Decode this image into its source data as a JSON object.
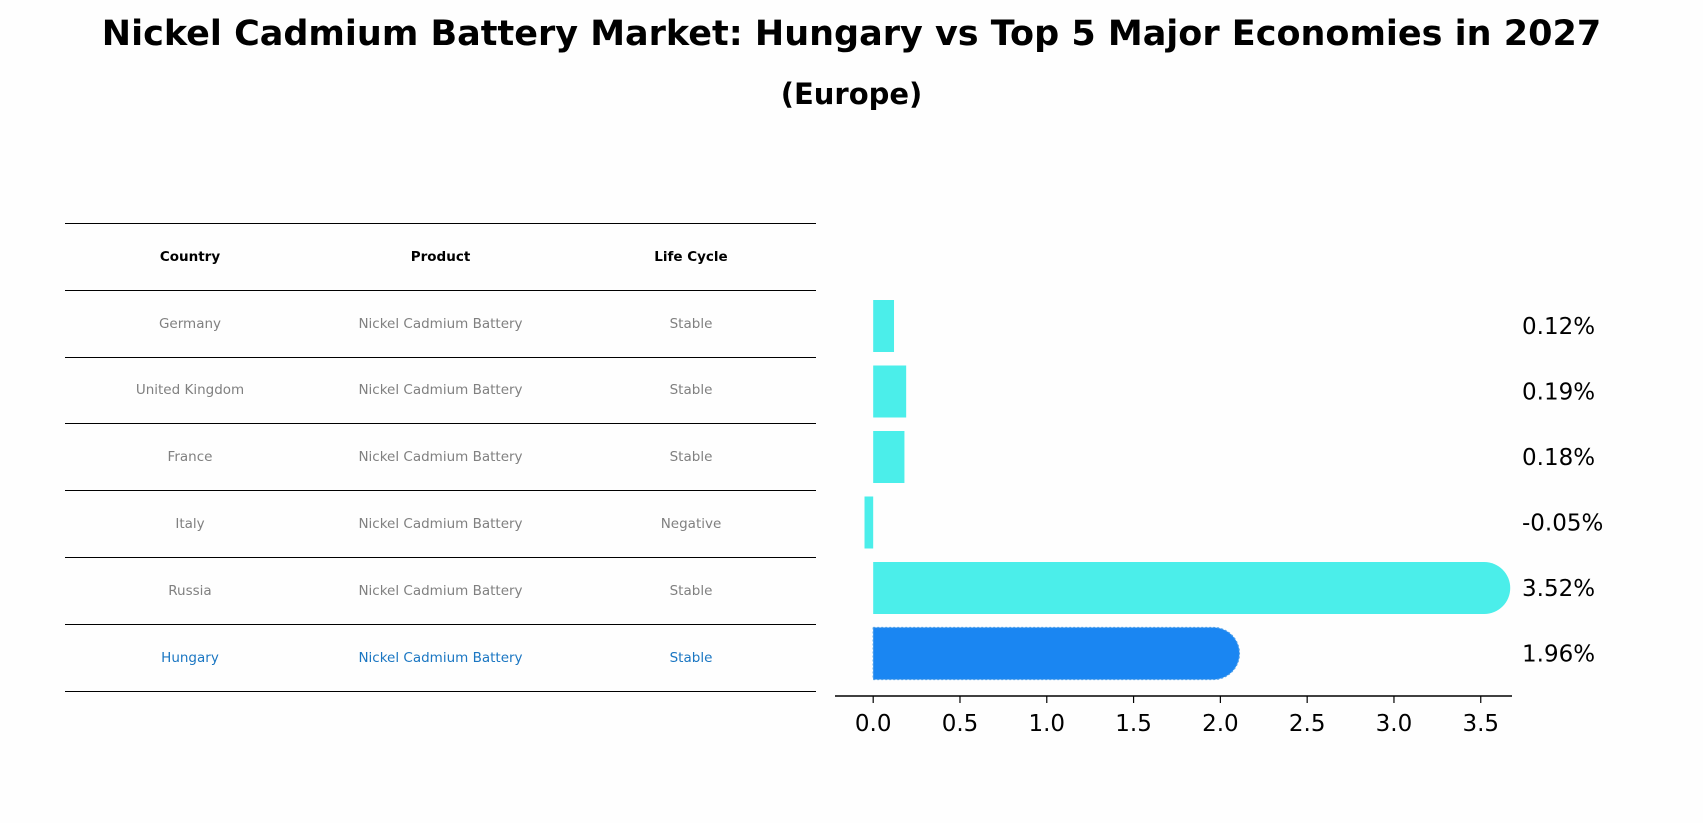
{
  "title": "Nickel Cadmium Battery Market: Hungary vs Top 5 Major Economies in 2027",
  "subtitle": "(Europe)",
  "table": {
    "headers": [
      "Country",
      "Product",
      "Life Cycle"
    ],
    "rows": [
      {
        "country": "Germany",
        "product": "Nickel Cadmium Battery",
        "life_cycle": "Stable"
      },
      {
        "country": "United Kingdom",
        "product": "Nickel Cadmium Battery",
        "life_cycle": "Stable"
      },
      {
        "country": "France",
        "product": "Nickel Cadmium Battery",
        "life_cycle": "Stable"
      },
      {
        "country": "Italy",
        "product": "Nickel Cadmium Battery",
        "life_cycle": "Negative"
      },
      {
        "country": "Russia",
        "product": "Nickel Cadmium Battery",
        "life_cycle": "Stable"
      },
      {
        "country": "Hungary",
        "product": "Nickel Cadmium Battery",
        "life_cycle": "Stable"
      }
    ]
  },
  "chart_data": {
    "type": "bar",
    "orientation": "horizontal",
    "categories": [
      "Germany",
      "United Kingdom",
      "France",
      "Italy",
      "Russia",
      "Hungary"
    ],
    "values": [
      0.12,
      0.19,
      0.18,
      -0.05,
      3.52,
      1.96
    ],
    "data_labels": [
      "0.12%",
      "0.19%",
      "0.18%",
      "-0.05%",
      "3.52%",
      "1.96%"
    ],
    "highlight_category": "Hungary",
    "xlim": [
      -0.22,
      3.68
    ],
    "xticks": [
      0.0,
      0.5,
      1.0,
      1.5,
      2.0,
      2.5,
      3.0,
      3.5
    ],
    "xtick_labels": [
      "0.0",
      "0.5",
      "1.0",
      "1.5",
      "2.0",
      "2.5",
      "3.0",
      "3.5"
    ],
    "xlabel": "",
    "ylabel": "",
    "grid": false,
    "colors": {
      "default": "#4beeea",
      "highlight": "#1a86f2",
      "highlight_text": "#1a76c2",
      "muted_text": "#808080"
    }
  }
}
